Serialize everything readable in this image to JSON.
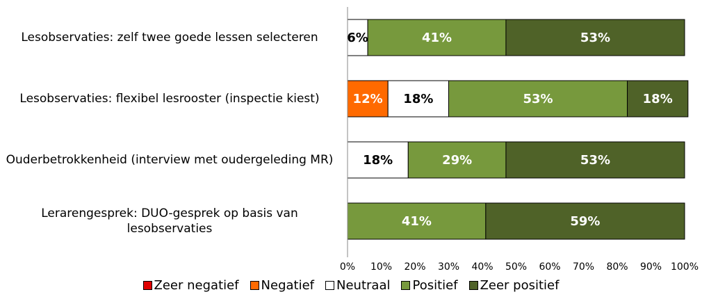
{
  "chart_data": {
    "type": "stacked-bar-horizontal",
    "categories": [
      "Lesobservaties: zelf twee goede lessen selecteren",
      "Lesobservaties: flexibel lesrooster (inspectie kiest)",
      "Ouderbetrokkenheid (interview met oudergeleding MR)",
      "Lerarengesprek: DUO-gesprek op basis van lesobservaties"
    ],
    "series": [
      {
        "name": "Zeer negatief",
        "color": "#e00000",
        "values": [
          null,
          null,
          null,
          null
        ],
        "value_labels": [
          null,
          null,
          null,
          null
        ]
      },
      {
        "name": "Negatief",
        "color": "#ff6a00",
        "values": [
          null,
          12,
          null,
          null
        ],
        "value_labels": [
          null,
          "12%",
          null,
          null
        ]
      },
      {
        "name": "Neutraal",
        "color": "#ffffff",
        "values": [
          6,
          18,
          18,
          null
        ],
        "value_labels": [
          "6%",
          "18%",
          "18%",
          null
        ]
      },
      {
        "name": "Positief",
        "color": "#77993d",
        "values": [
          41,
          53,
          29,
          41
        ],
        "value_labels": [
          "41%",
          "53%",
          "29%",
          "41%"
        ]
      },
      {
        "name": "Zeer positief",
        "color": "#4f6228",
        "values": [
          53,
          18,
          53,
          59
        ],
        "value_labels": [
          "53%",
          "18%",
          "53%",
          "59%"
        ]
      }
    ],
    "xlim": [
      0,
      100
    ],
    "xticks": [
      {
        "value": 0,
        "label": "0%"
      },
      {
        "value": 10,
        "label": "10%"
      },
      {
        "value": 20,
        "label": "20%"
      },
      {
        "value": 30,
        "label": "30%"
      },
      {
        "value": 40,
        "label": "40%"
      },
      {
        "value": 50,
        "label": "50%"
      },
      {
        "value": 60,
        "label": "60%"
      },
      {
        "value": 70,
        "label": "70%"
      },
      {
        "value": 80,
        "label": "80%"
      },
      {
        "value": 90,
        "label": "90%"
      },
      {
        "value": 100,
        "label": "100%"
      }
    ],
    "legend": "bottom"
  }
}
